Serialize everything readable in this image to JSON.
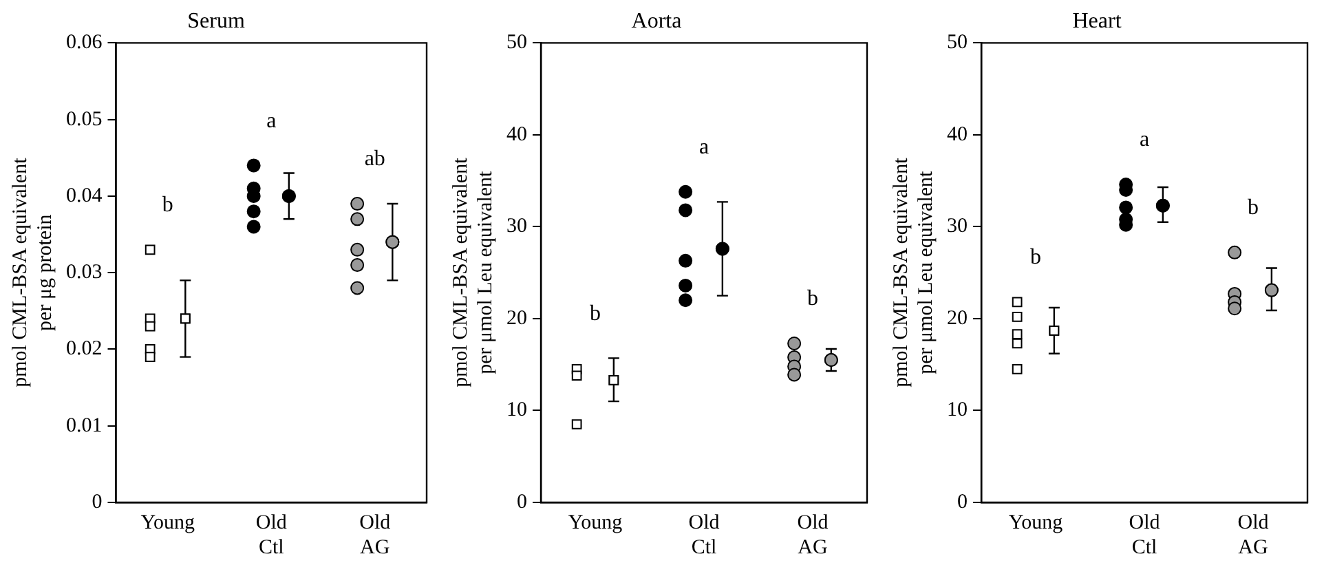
{
  "chart_data": [
    {
      "type": "scatter",
      "title": "Serum",
      "ylabel": "pmol CML-BSA equivalent\nper μg protein",
      "categories": [
        "Young",
        "Old Ctl",
        "Old AG"
      ],
      "ylim": [
        0,
        0.06
      ],
      "yticks": [
        0,
        0.01,
        0.02,
        0.03,
        0.04,
        0.05,
        0.06
      ],
      "grid": false,
      "legend": false,
      "series": [
        {
          "color": "#ffffff",
          "marker": "square",
          "x": [
            "Young",
            "Young",
            "Young",
            "Young",
            "Young"
          ],
          "values": [
            0.033,
            0.024,
            0.023,
            0.02,
            0.019
          ]
        },
        {
          "color": "#ffffff",
          "marker": "square",
          "x": [
            "Young"
          ],
          "values": [
            0.024
          ],
          "errors": [
            [
              0.019,
              0.029
            ]
          ]
        },
        {
          "color": "#000000",
          "marker": "circle",
          "x": [
            "Old Ctl",
            "Old Ctl",
            "Old Ctl",
            "Old Ctl",
            "Old Ctl"
          ],
          "values": [
            0.044,
            0.041,
            0.04,
            0.038,
            0.036
          ]
        },
        {
          "color": "#000000",
          "marker": "circle",
          "x": [
            "Old Ctl"
          ],
          "values": [
            0.04
          ],
          "errors": [
            [
              0.037,
              0.043
            ]
          ]
        },
        {
          "color": "#999999",
          "marker": "circle",
          "x": [
            "Old AG",
            "Old AG",
            "Old AG",
            "Old AG",
            "Old AG"
          ],
          "values": [
            0.039,
            0.037,
            0.033,
            0.031,
            0.028
          ]
        },
        {
          "color": "#999999",
          "marker": "circle",
          "x": [
            "Old AG"
          ],
          "values": [
            0.034
          ],
          "errors": [
            [
              0.029,
              0.039
            ]
          ]
        }
      ],
      "annotations": [
        "b",
        "a",
        "ab"
      ]
    },
    {
      "type": "scatter",
      "title": "Aorta",
      "ylabel": "pmol CML-BSA equivalent\nper μmol Leu equivalent",
      "categories": [
        "Young",
        "Old Ctl",
        "Old AG"
      ],
      "ylim": [
        0,
        50
      ],
      "yticks": [
        0,
        10,
        20,
        30,
        40,
        50
      ],
      "grid": false,
      "legend": false,
      "series": [
        {
          "color": "#ffffff",
          "marker": "square",
          "x": [
            "Young",
            "Young",
            "Young"
          ],
          "values": [
            14.5,
            13.8,
            8.5
          ]
        },
        {
          "color": "#ffffff",
          "marker": "square",
          "x": [
            "Young"
          ],
          "values": [
            13.3
          ],
          "errors": [
            [
              11,
              15.7
            ]
          ]
        },
        {
          "color": "#000000",
          "marker": "circle",
          "x": [
            "Old Ctl",
            "Old Ctl",
            "Old Ctl",
            "Old Ctl",
            "Old Ctl"
          ],
          "values": [
            33.8,
            31.8,
            26.3,
            23.6,
            22
          ]
        },
        {
          "color": "#000000",
          "marker": "circle",
          "x": [
            "Old Ctl"
          ],
          "values": [
            27.6
          ],
          "errors": [
            [
              22.5,
              32.7
            ]
          ]
        },
        {
          "color": "#999999",
          "marker": "circle",
          "x": [
            "Old AG",
            "Old AG",
            "Old AG",
            "Old AG"
          ],
          "values": [
            17.3,
            15.8,
            14.8,
            13.9
          ]
        },
        {
          "color": "#999999",
          "marker": "circle",
          "x": [
            "Old AG"
          ],
          "values": [
            15.5
          ],
          "errors": [
            [
              14.3,
              16.7
            ]
          ]
        }
      ],
      "annotations": [
        "b",
        "a",
        "b"
      ]
    },
    {
      "type": "scatter",
      "title": "Heart",
      "ylabel": "pmol CML-BSA equivalent\nper μmol Leu equivalent",
      "categories": [
        "Young",
        "Old Ctl",
        "Old AG"
      ],
      "ylim": [
        0,
        50
      ],
      "yticks": [
        0,
        10,
        20,
        30,
        40,
        50
      ],
      "grid": false,
      "legend": false,
      "series": [
        {
          "color": "#ffffff",
          "marker": "square",
          "x": [
            "Young",
            "Young",
            "Young",
            "Young",
            "Young"
          ],
          "values": [
            21.8,
            20.2,
            18.3,
            17.3,
            14.5
          ]
        },
        {
          "color": "#ffffff",
          "marker": "square",
          "x": [
            "Young"
          ],
          "values": [
            18.7
          ],
          "errors": [
            [
              16.2,
              21.2
            ]
          ]
        },
        {
          "color": "#000000",
          "marker": "circle",
          "x": [
            "Old Ctl",
            "Old Ctl",
            "Old Ctl",
            "Old Ctl",
            "Old Ctl"
          ],
          "values": [
            34.6,
            34.0,
            32.1,
            30.8,
            30.2
          ]
        },
        {
          "color": "#000000",
          "marker": "circle",
          "x": [
            "Old Ctl"
          ],
          "values": [
            32.3
          ],
          "errors": [
            [
              30.5,
              34.3
            ]
          ]
        },
        {
          "color": "#999999",
          "marker": "circle",
          "x": [
            "Old AG",
            "Old AG",
            "Old AG",
            "Old AG"
          ],
          "values": [
            27.2,
            22.7,
            21.8,
            21.1
          ]
        },
        {
          "color": "#999999",
          "marker": "circle",
          "x": [
            "Old AG"
          ],
          "values": [
            23.1
          ],
          "errors": [
            [
              20.9,
              25.5
            ]
          ]
        }
      ],
      "annotations": [
        "b",
        "a",
        "b"
      ]
    }
  ]
}
